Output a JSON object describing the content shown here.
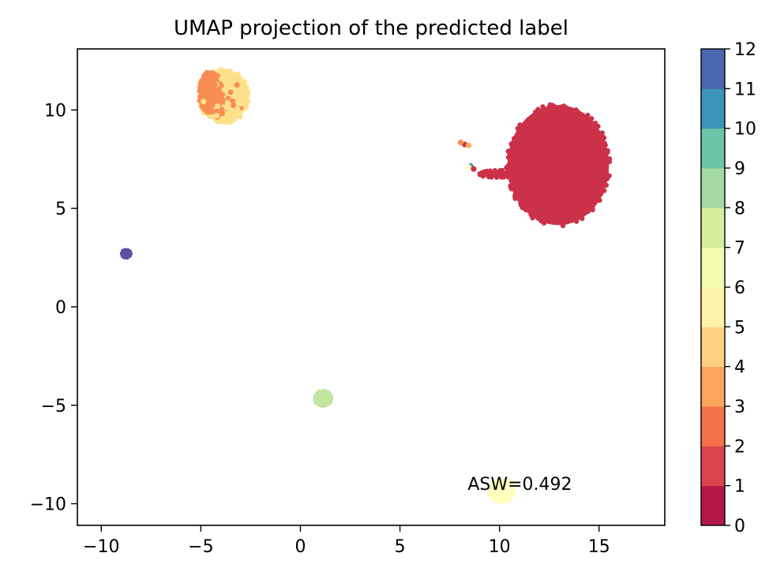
{
  "chart_data": {
    "type": "scatter",
    "title": "UMAP projection of the predicted label",
    "xlabel": "",
    "ylabel": "",
    "xlim": [
      -11.2,
      18.3
    ],
    "ylim": [
      -11.1,
      13.1
    ],
    "x_ticks": [
      -10,
      -5,
      0,
      5,
      10,
      15
    ],
    "y_ticks": [
      -10,
      -5,
      0,
      5,
      10
    ],
    "x_tick_labels": [
      "−10",
      "−5",
      "0",
      "5",
      "10",
      "15"
    ],
    "y_tick_labels": [
      "−10",
      "−5",
      "0",
      "5",
      "10"
    ],
    "grid": false,
    "annotation": "ASW=0.492",
    "annotation_position": {
      "x": 8.4,
      "y": -9.3
    },
    "colorbar": {
      "colormap": "Spectral",
      "range": [
        0,
        12
      ],
      "ticks": [
        0,
        1,
        2,
        3,
        4,
        5,
        6,
        7,
        8,
        9,
        10,
        11,
        12
      ],
      "tick_labels": [
        "0",
        "1",
        "2",
        "3",
        "4",
        "5",
        "6",
        "7",
        "8",
        "9",
        "10",
        "11",
        "12"
      ],
      "band_colors": [
        "#b5194a",
        "#d9444e",
        "#f4714a",
        "#fba45c",
        "#fdd180",
        "#fef3aa",
        "#f3fab0",
        "#d6ee9b",
        "#a5d9a3",
        "#6bc4a5",
        "#3a94b9",
        "#4a66ae"
      ]
    },
    "clusters": [
      {
        "label": 1,
        "color": "#cb324a",
        "cx": 12.95,
        "cy": 7.2,
        "rx": 2.55,
        "ry": 3.05,
        "shape": "blob"
      },
      {
        "label": 1,
        "color": "#cb324a",
        "cx": 9.9,
        "cy": 6.75,
        "rx": 0.9,
        "ry": 0.18,
        "shape": "bridge"
      },
      {
        "label": 4,
        "color": "#fee08b",
        "cx": -3.85,
        "cy": 10.7,
        "rx": 1.25,
        "ry": 1.35,
        "shape": "blob"
      },
      {
        "label": 3,
        "color": "#f88d52",
        "cx": -4.5,
        "cy": 10.9,
        "rx": 0.6,
        "ry": 1.05,
        "shape": "blob"
      },
      {
        "label": 8,
        "color": "#c2e5a0",
        "cx": 1.15,
        "cy": -4.65,
        "rx": 0.4,
        "ry": 0.38,
        "shape": "blob"
      },
      {
        "label": 6,
        "color": "#ffffbe",
        "cx": 10.1,
        "cy": -9.35,
        "rx": 0.6,
        "ry": 0.55,
        "shape": "blob"
      },
      {
        "label": 12,
        "color": "#5c4fa5",
        "cx": -8.75,
        "cy": 2.7,
        "rx": 0.2,
        "ry": 0.18,
        "shape": "blob"
      }
    ],
    "points": [
      {
        "label": 1,
        "x": 8.25,
        "y": 8.25,
        "color": "#cb324a"
      },
      {
        "label": 3,
        "x": 8.05,
        "y": 8.35,
        "color": "#f88d52"
      },
      {
        "label": 4,
        "x": 8.45,
        "y": 8.2,
        "color": "#fdae61"
      },
      {
        "label": 10,
        "x": 8.55,
        "y": 7.15,
        "color": "#3288bd"
      },
      {
        "label": 6,
        "x": 8.45,
        "y": 7.1,
        "color": "#ffffbe"
      },
      {
        "label": 1,
        "x": 8.7,
        "y": 7.0,
        "color": "#cb324a"
      }
    ]
  }
}
